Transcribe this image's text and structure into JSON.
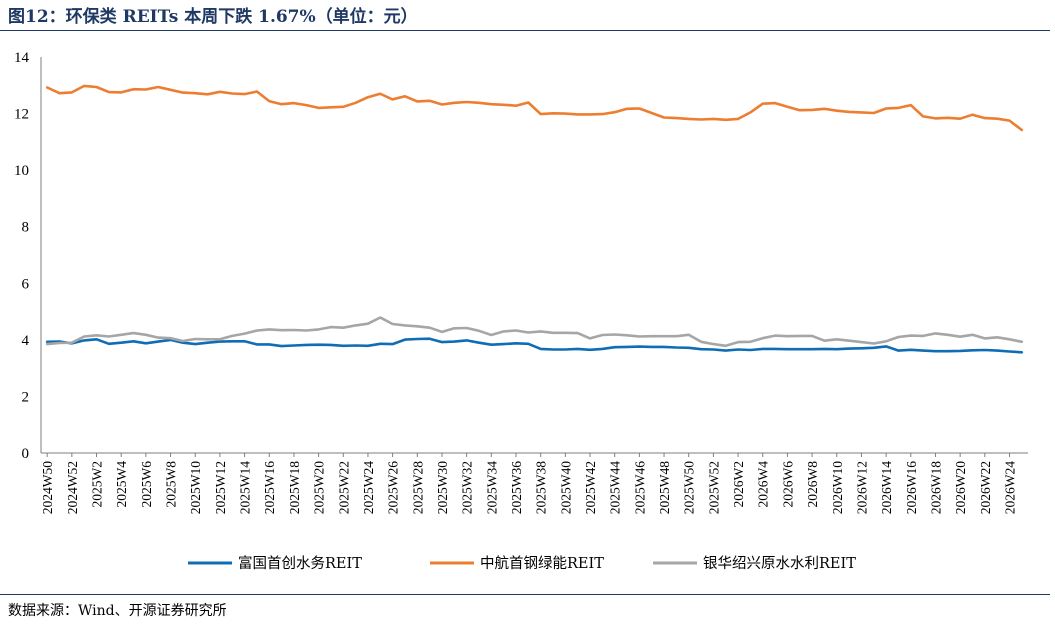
{
  "title": "图12：环保类 REITs 本周下跌 1.67%（单位：元）",
  "source": "数据来源：Wind、开源证券研究所",
  "chart_data": {
    "type": "line",
    "ylim": [
      0,
      14
    ],
    "yticks": [
      0,
      2,
      4,
      6,
      8,
      10,
      12,
      14
    ],
    "grid": false,
    "legend_position": "bottom",
    "x": [
      "2024W50",
      "2024W51",
      "2024W52",
      "2025W1",
      "2025W2",
      "2025W3",
      "2025W4",
      "2025W5",
      "2025W6",
      "2025W7",
      "2025W8",
      "2025W9",
      "2025W10",
      "2025W11",
      "2025W12",
      "2025W13",
      "2025W14",
      "2025W15",
      "2025W16",
      "2025W17",
      "2025W18",
      "2025W19",
      "2025W20",
      "2025W21",
      "2025W22",
      "2025W23",
      "2025W24",
      "2025W25",
      "2025W26",
      "2025W27",
      "2025W28",
      "2025W29",
      "2025W30",
      "2025W31",
      "2025W32",
      "2025W33",
      "2025W34",
      "2025W35",
      "2025W36",
      "2025W37",
      "2025W38",
      "2025W39",
      "2025W40",
      "2025W41",
      "2025W42",
      "2025W43",
      "2025W44",
      "2025W45",
      "2025W46",
      "2025W47",
      "2025W48",
      "2025W49",
      "2025W50",
      "2025W51",
      "2025W52",
      "2026W1",
      "2026W2",
      "2026W3",
      "2026W4",
      "2026W5",
      "2026W6",
      "2026W7",
      "2026W8",
      "2026W9",
      "2026W10",
      "2026W11",
      "2026W12",
      "2026W13",
      "2026W14",
      "2026W15",
      "2026W16",
      "2026W17",
      "2026W18",
      "2026W19",
      "2026W20",
      "2026W21",
      "2026W22",
      "2026W23",
      "2026W24",
      "2026W25"
    ],
    "xtick_labels": [
      "2024W50",
      "2024W52",
      "2025W2",
      "2025W4",
      "2025W6",
      "2025W8",
      "2025W10",
      "2025W12",
      "2025W14",
      "2025W16",
      "2025W18",
      "2025W20",
      "2025W22",
      "2025W24",
      "2025W26",
      "2025W28",
      "2025W30",
      "2025W32",
      "2025W34",
      "2025W36",
      "2025W38",
      "2025W40",
      "2025W42",
      "2025W44",
      "2025W46",
      "2025W48",
      "2025W50",
      "2025W52",
      "2026W2",
      "2026W4",
      "2026W6",
      "2026W8",
      "2026W10",
      "2026W12",
      "2026W14",
      "2026W16",
      "2026W18",
      "2026W20",
      "2026W22",
      "2026W24"
    ],
    "series": [
      {
        "name": "富国首创水务REIT",
        "color": "#0f6db5",
        "values": [
          3.93,
          3.94,
          3.88,
          3.98,
          4.02,
          3.86,
          3.9,
          3.95,
          3.88,
          3.94,
          4.0,
          3.9,
          3.85,
          3.9,
          3.94,
          3.95,
          3.95,
          3.84,
          3.84,
          3.78,
          3.8,
          3.82,
          3.83,
          3.82,
          3.79,
          3.8,
          3.79,
          3.86,
          3.85,
          4.01,
          4.03,
          4.04,
          3.92,
          3.94,
          3.98,
          3.9,
          3.83,
          3.85,
          3.88,
          3.86,
          3.68,
          3.66,
          3.66,
          3.68,
          3.65,
          3.68,
          3.74,
          3.75,
          3.76,
          3.75,
          3.75,
          3.73,
          3.72,
          3.67,
          3.66,
          3.62,
          3.66,
          3.64,
          3.68,
          3.68,
          3.67,
          3.67,
          3.67,
          3.68,
          3.67,
          3.69,
          3.7,
          3.72,
          3.77,
          3.62,
          3.65,
          3.62,
          3.6,
          3.6,
          3.61,
          3.63,
          3.64,
          3.62,
          3.59,
          3.56
        ]
      },
      {
        "name": "中航首钢绿能REIT",
        "color": "#ed7d31",
        "values": [
          12.92,
          12.72,
          12.75,
          12.98,
          12.94,
          12.76,
          12.75,
          12.86,
          12.85,
          12.94,
          12.84,
          12.74,
          12.72,
          12.68,
          12.77,
          12.71,
          12.69,
          12.78,
          12.44,
          12.33,
          12.37,
          12.3,
          12.2,
          12.22,
          12.24,
          12.38,
          12.58,
          12.7,
          12.5,
          12.61,
          12.43,
          12.45,
          12.32,
          12.38,
          12.41,
          12.38,
          12.33,
          12.31,
          12.28,
          12.39,
          11.98,
          12.01,
          12.0,
          11.97,
          11.97,
          11.98,
          12.05,
          12.17,
          12.18,
          12.02,
          11.86,
          11.84,
          11.81,
          11.79,
          11.81,
          11.78,
          11.81,
          12.04,
          12.35,
          12.37,
          12.24,
          12.12,
          12.13,
          12.17,
          12.1,
          12.06,
          12.04,
          12.02,
          12.18,
          12.2,
          12.3,
          11.9,
          11.83,
          11.85,
          11.82,
          11.96,
          11.84,
          11.82,
          11.75,
          11.42
        ]
      },
      {
        "name": "银华绍兴原水水利REIT",
        "color": "#a6a6a6",
        "values": [
          3.85,
          3.89,
          3.9,
          4.12,
          4.16,
          4.12,
          4.18,
          4.24,
          4.18,
          4.08,
          4.06,
          3.96,
          4.03,
          4.02,
          4.02,
          4.14,
          4.22,
          4.33,
          4.37,
          4.34,
          4.35,
          4.33,
          4.37,
          4.45,
          4.43,
          4.51,
          4.57,
          4.79,
          4.56,
          4.51,
          4.48,
          4.43,
          4.28,
          4.41,
          4.42,
          4.32,
          4.17,
          4.3,
          4.33,
          4.26,
          4.3,
          4.25,
          4.25,
          4.24,
          4.05,
          4.17,
          4.19,
          4.16,
          4.12,
          4.13,
          4.13,
          4.13,
          4.18,
          3.93,
          3.85,
          3.79,
          3.92,
          3.93,
          4.06,
          4.15,
          4.13,
          4.14,
          4.14,
          3.97,
          4.02,
          3.97,
          3.92,
          3.87,
          3.95,
          4.1,
          4.15,
          4.14,
          4.23,
          4.18,
          4.11,
          4.18,
          4.05,
          4.09,
          4.02,
          3.93
        ]
      }
    ]
  }
}
